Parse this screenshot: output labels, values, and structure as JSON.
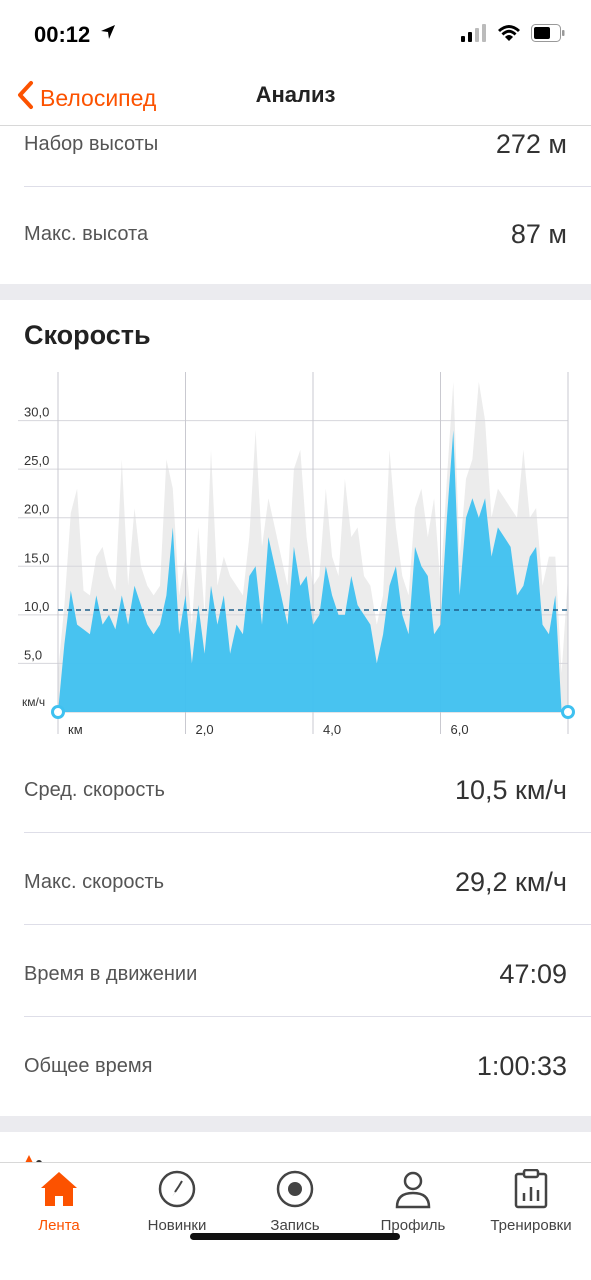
{
  "status": {
    "time": "00:12",
    "icons": [
      "location-arrow-icon",
      "signal-icon",
      "wifi-icon",
      "battery-icon"
    ]
  },
  "nav": {
    "back_label": "Велосипед",
    "title": "Анализ",
    "accent": "#fc5200"
  },
  "elevation": {
    "gain_label": "Набор высоты",
    "gain_value": "272 м",
    "max_label": "Макс. высота",
    "max_value": "87 м"
  },
  "speed": {
    "title": "Скорость",
    "avg_label": "Сред. скорость",
    "avg_value": "10,5 км/ч",
    "max_label": "Макс. скорость",
    "max_value": "29,2 км/ч",
    "moving_label": "Время в движении",
    "moving_value": "47:09",
    "elapsed_label": "Общее время",
    "elapsed_value": "1:00:33"
  },
  "chart_data": {
    "type": "area",
    "y_unit": "км/ч",
    "x_unit": "км",
    "y_ticks": [
      "5,0",
      "10,0",
      "15,0",
      "20,0",
      "25,0",
      "30,0"
    ],
    "x_ticks": [
      "2,0",
      "4,0",
      "6,0"
    ],
    "ylim": [
      0,
      35
    ],
    "xlim": [
      0,
      8
    ],
    "grid": true,
    "average_line": 10.5,
    "series": [
      {
        "color": "#3fc1f0",
        "x": [
          0,
          0.1,
          0.2,
          0.3,
          0.4,
          0.5,
          0.6,
          0.7,
          0.8,
          0.9,
          1.0,
          1.1,
          1.2,
          1.3,
          1.4,
          1.5,
          1.6,
          1.7,
          1.8,
          1.9,
          2.0,
          2.1,
          2.2,
          2.3,
          2.4,
          2.5,
          2.6,
          2.7,
          2.8,
          2.9,
          3.0,
          3.1,
          3.2,
          3.3,
          3.4,
          3.5,
          3.6,
          3.7,
          3.8,
          3.9,
          4.0,
          4.1,
          4.2,
          4.3,
          4.4,
          4.5,
          4.6,
          4.7,
          4.8,
          4.9,
          5.0,
          5.1,
          5.2,
          5.3,
          5.4,
          5.5,
          5.6,
          5.7,
          5.8,
          5.9,
          6.0,
          6.1,
          6.2,
          6.3,
          6.4,
          6.5,
          6.6,
          6.7,
          6.8,
          6.9,
          7.0,
          7.1,
          7.2,
          7.3,
          7.4,
          7.5,
          7.6,
          7.7,
          7.8,
          7.9,
          8.0
        ],
        "y": [
          0,
          7,
          12.5,
          9,
          8.5,
          8,
          12,
          9,
          10,
          8.5,
          12,
          9,
          13,
          11,
          9,
          8,
          9,
          12,
          19,
          8,
          12,
          5,
          11,
          6,
          13,
          9,
          12,
          6,
          9,
          8,
          14,
          15,
          9,
          18,
          15,
          12,
          9,
          17,
          13,
          14,
          9,
          10,
          15,
          12,
          10,
          10,
          14,
          11,
          10,
          9,
          5,
          8,
          13,
          15,
          10,
          8,
          17,
          15,
          14,
          8,
          9,
          20,
          29,
          12,
          20,
          22,
          20,
          22,
          16,
          19,
          18,
          17,
          12,
          13,
          16,
          17,
          9,
          8,
          12,
          0,
          0
        ]
      }
    ]
  },
  "tabs": [
    {
      "label": "Лента",
      "icon": "home-icon",
      "active": true
    },
    {
      "label": "Новинки",
      "icon": "compass-icon",
      "active": false
    },
    {
      "label": "Запись",
      "icon": "record-icon",
      "active": false
    },
    {
      "label": "Профиль",
      "icon": "profile-icon",
      "active": false
    },
    {
      "label": "Тренировки",
      "icon": "clipboard-chart-icon",
      "active": false
    }
  ]
}
